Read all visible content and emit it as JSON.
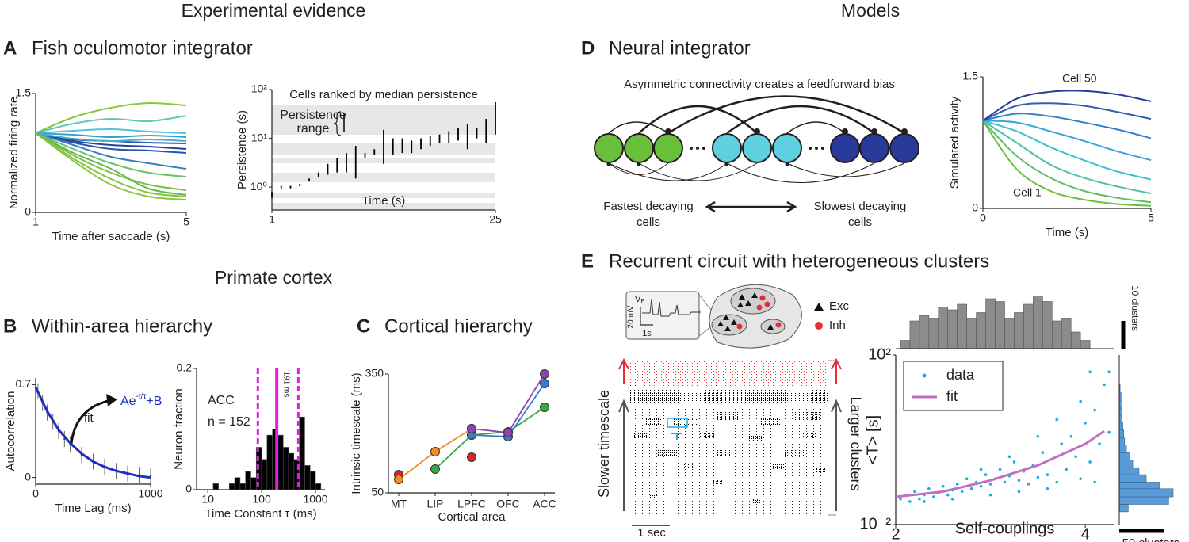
{
  "headings": {
    "experimental": "Experimental evidence",
    "models": "Models",
    "primate": "Primate cortex"
  },
  "panels": {
    "A": {
      "letter": "A",
      "title": "Fish oculomotor integrator"
    },
    "B": {
      "letter": "B",
      "title": "Within-area hierarchy"
    },
    "C": {
      "letter": "C",
      "title": "Cortical hierarchy"
    },
    "D": {
      "letter": "D",
      "title": "Neural integrator"
    },
    "E": {
      "letter": "E",
      "title": "Recurrent circuit with heterogeneous clusters"
    }
  },
  "diagram_d": {
    "caption": "Asymmetric connectivity creates a feedforward bias",
    "left": [
      "Fastest decaying",
      "cells"
    ],
    "right": [
      "Slowest decaying",
      "cells"
    ]
  },
  "inset_e": {
    "trace_label": "V",
    "trace_sub": "E",
    "voltage": "20 mV",
    "time": "1s",
    "exc": "Exc",
    "inh": "Inh"
  },
  "raster": {
    "scale": "1 sec",
    "left_label": "Slower timescale",
    "right_label": "Larger clusters"
  },
  "chart_data": [
    {
      "type": "line",
      "xlabel": "Time after saccade (s)",
      "ylabel": "Normalized firing rate",
      "x": [
        1,
        2,
        3,
        4,
        5
      ],
      "xlim": [
        1,
        5
      ],
      "ylim": [
        0,
        1.5
      ],
      "xticks": [
        1,
        5
      ],
      "yticks": [
        0,
        1.5
      ],
      "smooth": true,
      "series": [
        {
          "color": "#8cc63f",
          "values": [
            1,
            1.2,
            1.32,
            1.38,
            1.35
          ]
        },
        {
          "color": "#5fc9b8",
          "values": [
            1,
            1.12,
            1.18,
            1.15,
            1.22
          ]
        },
        {
          "color": "#4fc3d8",
          "values": [
            1,
            1.03,
            1.05,
            1.02,
            1.0
          ]
        },
        {
          "color": "#3aa0d0",
          "values": [
            1,
            0.98,
            0.95,
            0.97,
            0.95
          ]
        },
        {
          "color": "#2d5fb0",
          "values": [
            1,
            0.92,
            0.9,
            0.88,
            0.87
          ]
        },
        {
          "color": "#24449a",
          "values": [
            1,
            0.9,
            0.85,
            0.83,
            0.8
          ]
        },
        {
          "color": "#2a54a8",
          "values": [
            1,
            0.88,
            0.8,
            0.78,
            0.75
          ]
        },
        {
          "color": "#3b7cc0",
          "values": [
            1,
            0.85,
            0.7,
            0.62,
            0.55
          ]
        },
        {
          "color": "#49b0c8",
          "values": [
            1,
            0.93,
            0.9,
            0.92,
            0.9
          ]
        },
        {
          "color": "#6cc070",
          "values": [
            1,
            0.8,
            0.62,
            0.5,
            0.45
          ]
        },
        {
          "color": "#78c050",
          "values": [
            1,
            0.72,
            0.5,
            0.35,
            0.28
          ]
        },
        {
          "color": "#82c448",
          "values": [
            1,
            0.68,
            0.42,
            0.25,
            0.2
          ]
        },
        {
          "color": "#8cc63f",
          "values": [
            1,
            0.65,
            0.35,
            0.2,
            0.16
          ]
        },
        {
          "color": "#6ab84a",
          "values": [
            1,
            0.75,
            0.55,
            0.3,
            0.22
          ]
        }
      ]
    },
    {
      "type": "range",
      "title": "Cells ranked by median persistence",
      "xlabel": "Time (s)",
      "ylabel": "Persistence (s)",
      "annotation": [
        "Persistence",
        "range"
      ],
      "ylog": true,
      "color": "#000000",
      "xlim": [
        1,
        25
      ],
      "ylim": [
        0.34,
        100
      ],
      "xticks": [
        1,
        25
      ],
      "yticks": [
        {
          "value": 1,
          "label": "10⁰"
        },
        {
          "value": 10,
          "label": "10¹"
        },
        {
          "value": 100,
          "label": "10²"
        }
      ],
      "x": [
        1,
        2,
        3,
        4,
        5,
        6,
        7,
        8,
        9,
        10,
        11,
        12,
        13,
        14,
        15,
        16,
        17,
        18,
        19,
        20,
        21,
        22,
        23,
        24,
        25
      ],
      "low": [
        0.6,
        1,
        1,
        1.1,
        1.3,
        1.6,
        1.8,
        2,
        2,
        1.5,
        4,
        4.5,
        3,
        4.5,
        5,
        5,
        6,
        7,
        8,
        8,
        9,
        6,
        10,
        8,
        12
      ],
      "high": [
        0.8,
        1,
        1,
        1.1,
        1.5,
        2,
        3,
        4,
        5,
        7,
        5,
        6,
        15,
        10,
        10,
        9,
        10,
        11,
        12,
        14,
        16,
        20,
        16,
        25,
        55
      ]
    },
    {
      "type": "scatter",
      "xlabel": "Time Lag (ms)",
      "ylabel": "Autocorrelation",
      "formula": [
        "Ae",
        "-t/τ",
        "+B"
      ],
      "xlim": [
        0,
        1000
      ],
      "ylim": [
        -0.05,
        0.75
      ],
      "xticks": [
        0,
        1000
      ],
      "yticks": [
        0,
        0.7
      ],
      "series": [
        {
          "color": "#444444",
          "x": [
            20,
            60,
            100,
            150,
            200,
            250,
            300,
            400,
            500,
            600,
            700,
            800,
            900,
            1000
          ],
          "values": [
            0.65,
            0.56,
            0.49,
            0.42,
            0.35,
            0.29,
            0.25,
            0.17,
            0.12,
            0.08,
            0.05,
            0.03,
            0.02,
            0.01
          ],
          "errors": [
            0.06,
            0.06,
            0.06,
            0.06,
            0.06,
            0.06,
            0.06,
            0.06,
            0.06,
            0.06,
            0.06,
            0.06,
            0.06,
            0.06
          ]
        },
        {
          "name": "fit",
          "style": "line",
          "color": "#1c2fbf",
          "x": [
            0,
            100,
            200,
            300,
            400,
            500,
            600,
            700,
            800,
            900,
            1000
          ],
          "values": [
            0.68,
            0.5,
            0.36,
            0.26,
            0.18,
            0.12,
            0.08,
            0.05,
            0.03,
            0.01,
            0.0
          ]
        }
      ]
    },
    {
      "type": "histogram",
      "xlabel": "Time Constant τ (ms)",
      "ylabel": "Neuron fraction",
      "annotations": [
        "ACC",
        "n = 152"
      ],
      "xlog": true,
      "color": "#000000",
      "xlim": [
        6.2,
        1500
      ],
      "ylim": [
        0,
        0.2
      ],
      "xticks": [
        10,
        100,
        1000
      ],
      "yticks": [
        0,
        0.2
      ],
      "bins": [
        12.6,
        15.8,
        20,
        25.1,
        31.6,
        39.8,
        50.1,
        63.1,
        79.4,
        100,
        125.9,
        158.5,
        199.5,
        251.2,
        316.2,
        398.1,
        501.2,
        631,
        794.3,
        1000,
        1258.9
      ],
      "counts": [
        0.01,
        0,
        0,
        0.01,
        0.02,
        0.01,
        0.03,
        0.02,
        0.07,
        0.05,
        0.09,
        0.1,
        0.09,
        0.07,
        0.06,
        0.05,
        0.12,
        0.04,
        0.03,
        0.01
      ],
      "median": {
        "value": 191,
        "label": "191 ms"
      },
      "median_color": "#e020e0",
      "quartiles": [
        85,
        480
      ]
    },
    {
      "type": "line",
      "xlabel": "Cortical area",
      "ylabel": "Intrinsic timescale (ms)",
      "markers": true,
      "categories": [
        "MT",
        "LIP",
        "LPFC",
        "OFC",
        "ACC"
      ],
      "ylim": [
        50,
        350
      ],
      "yticks": [
        50,
        350
      ],
      "series": [
        {
          "color": "#d62728",
          "values": [
            96,
            null,
            140,
            null,
            null
          ]
        },
        {
          "color": "#f28c28",
          "values": [
            84,
            154,
            212,
            null,
            null
          ]
        },
        {
          "color": "#3aa845",
          "values": [
            null,
            110,
            196,
            204,
            266
          ]
        },
        {
          "color": "#3a7bc8",
          "values": [
            null,
            null,
            196,
            192,
            326
          ]
        },
        {
          "color": "#8e44ad",
          "values": [
            null,
            null,
            212,
            202,
            350
          ]
        }
      ]
    },
    {
      "type": "line",
      "xlabel": "Time (s)",
      "ylabel": "Simulated activity",
      "annotations": [
        "Cell 50",
        "Cell 1"
      ],
      "smooth": true,
      "x": [
        0,
        1,
        2,
        3,
        4,
        5
      ],
      "xlim": [
        0,
        5
      ],
      "ylim": [
        0,
        1.5
      ],
      "xticks": [
        0,
        5
      ],
      "yticks": [
        0,
        1.5
      ],
      "series": [
        {
          "color": "#6abf3a",
          "values": [
            1,
            0.45,
            0.2,
            0.1,
            0.05,
            0.03
          ]
        },
        {
          "color": "#5cc06a",
          "values": [
            1,
            0.6,
            0.35,
            0.2,
            0.12,
            0.07
          ]
        },
        {
          "color": "#4fc2a0",
          "values": [
            1,
            0.75,
            0.5,
            0.35,
            0.25,
            0.17
          ]
        },
        {
          "color": "#3fbfd0",
          "values": [
            1,
            0.88,
            0.7,
            0.55,
            0.42,
            0.33
          ]
        },
        {
          "color": "#3aa6d8",
          "values": [
            1,
            0.98,
            0.88,
            0.77,
            0.65,
            0.55
          ]
        },
        {
          "color": "#3582c8",
          "values": [
            1,
            1.08,
            1.05,
            0.98,
            0.9,
            0.8
          ]
        },
        {
          "color": "#2f5eb0",
          "values": [
            1,
            1.17,
            1.2,
            1.17,
            1.1,
            1.02
          ]
        },
        {
          "color": "#2a3a9a",
          "values": [
            1,
            1.25,
            1.33,
            1.34,
            1.3,
            1.22
          ]
        }
      ]
    },
    {
      "type": "scatter",
      "xlabel": "Self-couplings",
      "ylabel": "<T> [s]",
      "ylog": true,
      "legend": "upper left",
      "xlim": [
        2,
        4.3
      ],
      "ylim": [
        0.01,
        100
      ],
      "xticks": [
        2,
        4
      ],
      "yticks": [
        {
          "value": 0.01,
          "label": "10⁻²"
        },
        {
          "value": 100,
          "label": "10²"
        }
      ],
      "series": [
        {
          "name": "data",
          "color": "#1aafe0",
          "x": [
            2.05,
            2.1,
            2.15,
            2.2,
            2.25,
            2.3,
            2.35,
            2.4,
            2.45,
            2.5,
            2.55,
            2.6,
            2.65,
            2.7,
            2.75,
            2.8,
            2.85,
            2.9,
            2.95,
            3.0,
            3.05,
            3.1,
            3.15,
            3.2,
            3.25,
            3.3,
            3.35,
            3.4,
            3.45,
            3.5,
            3.55,
            3.6,
            3.65,
            3.7,
            3.75,
            3.8,
            3.85,
            3.9,
            3.95,
            4.0,
            4.05,
            4.1,
            4.15,
            4.2,
            4.25,
            3.7,
            3.95,
            4.05,
            4.25,
            3.5,
            2.6,
            2.3,
            3.0,
            3.3,
            3.6,
            4.1,
            3.2,
            2.9
          ],
          "values": [
            0.04,
            0.05,
            0.035,
            0.06,
            0.04,
            0.05,
            0.07,
            0.045,
            0.055,
            0.08,
            0.05,
            0.065,
            0.09,
            0.06,
            0.12,
            0.07,
            0.1,
            0.08,
            0.15,
            0.09,
            0.12,
            0.2,
            0.1,
            0.14,
            0.3,
            0.11,
            0.18,
            0.09,
            0.25,
            0.13,
            0.5,
            0.15,
            0.35,
            0.1,
            0.8,
            0.2,
            1.2,
            0.4,
            0.12,
            2.5,
            0.3,
            5,
            0.8,
            20,
            1.5,
            3,
            8,
            40,
            40,
            1.2,
            0.04,
            0.035,
            0.05,
            0.06,
            0.07,
            0.1,
            0.4,
            0.2
          ]
        },
        {
          "name": "fit",
          "style": "line",
          "color": "#c070c0",
          "x": [
            2,
            2.5,
            3,
            3.5,
            4,
            4.2
          ],
          "values": [
            0.045,
            0.06,
            0.11,
            0.25,
            0.8,
            1.6
          ]
        }
      ]
    },
    {
      "type": "histogram",
      "color": "#8c8c8c",
      "xlim": [
        2,
        4.3
      ],
      "ylim": [
        0,
        20
      ],
      "bins": [
        2.05,
        2.15,
        2.25,
        2.35,
        2.45,
        2.55,
        2.65,
        2.75,
        2.85,
        2.95,
        3.05,
        3.15,
        3.25,
        3.35,
        3.45,
        3.55,
        3.65,
        3.75,
        3.85,
        3.95,
        4.05
      ],
      "counts": [
        3,
        10,
        12,
        11,
        15,
        14,
        16,
        11,
        13,
        18,
        17,
        11,
        13,
        16,
        19,
        17,
        10,
        11,
        6,
        3
      ],
      "scale": {
        "value": 10,
        "label": "10 clusters"
      }
    },
    {
      "type": "histogram",
      "orientation": "horizontal",
      "ylog": true,
      "color": "#5b9bd5",
      "xlim": [
        0,
        60
      ],
      "ylim": [
        0.01,
        100
      ],
      "bins": [
        0.02,
        0.03,
        0.045,
        0.07,
        0.1,
        0.15,
        0.22,
        0.33,
        0.5,
        0.75,
        1.1,
        1.7,
        2.5,
        3.8,
        5.6,
        8.5,
        13,
        20
      ],
      "counts": [
        10,
        55,
        60,
        45,
        30,
        22,
        15,
        12,
        8,
        6,
        5,
        4,
        3,
        3,
        2,
        2,
        1
      ],
      "scale": {
        "value": 50,
        "label": "50 clusters"
      }
    }
  ]
}
